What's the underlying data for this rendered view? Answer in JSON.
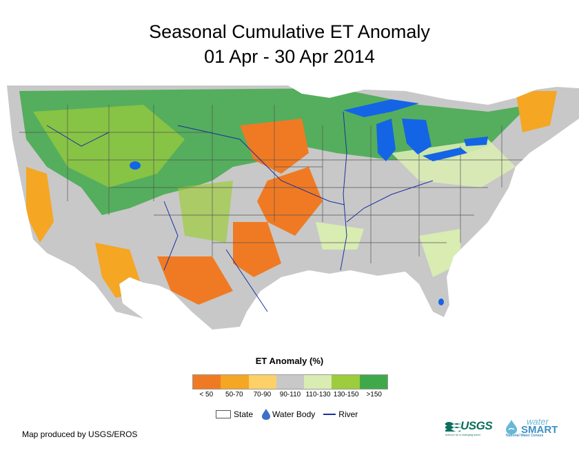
{
  "title": {
    "line1": "Seasonal Cumulative ET Anomaly",
    "line2": "01 Apr - 30 Apr 2014"
  },
  "legend": {
    "title": "ET Anomaly (%)",
    "bins": [
      {
        "label": "< 50",
        "color": "#f07a23"
      },
      {
        "label": "50-70",
        "color": "#f5a623"
      },
      {
        "label": "70-90",
        "color": "#fdd068"
      },
      {
        "label": "90-110",
        "color": "#c8c8c8"
      },
      {
        "label": "110-130",
        "color": "#d9ecb2"
      },
      {
        "label": "130-150",
        "color": "#9dcc3c"
      },
      {
        "label": ">150",
        "color": "#3fa94a"
      }
    ]
  },
  "map_key": {
    "state": "State",
    "water_body": "Water Body",
    "river": "River"
  },
  "credit": "Map produced by USGS/EROS",
  "logos": {
    "usgs": "USGS",
    "usgs_tagline": "science for a changing world",
    "watersmart_top": "water",
    "watersmart_main": "SMART",
    "watersmart_sub": "National Water Census"
  },
  "colors": {
    "water": "#1464e6",
    "river": "#1b2f9e",
    "state_border": "#555555",
    "base": "#c8c8c8"
  }
}
